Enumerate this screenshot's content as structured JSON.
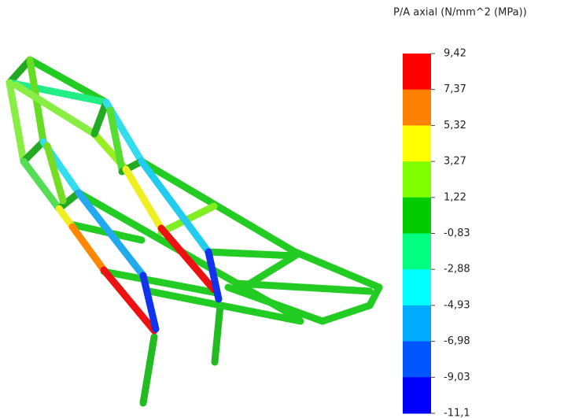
{
  "legend": {
    "title": "P/A axial (N/mm^2 (MPa))",
    "labels": [
      "9,42",
      "7,37",
      "5,32",
      "3,27",
      "1,22",
      "-0,83",
      "-2,88",
      "-4,93",
      "-6,98",
      "-9,03",
      "-11,1"
    ],
    "colors": [
      "#ff0000",
      "#ff8000",
      "#ffff00",
      "#80ff00",
      "#00cc00",
      "#00ff80",
      "#00ffff",
      "#00aaff",
      "#0055ff",
      "#0000ff"
    ]
  }
}
